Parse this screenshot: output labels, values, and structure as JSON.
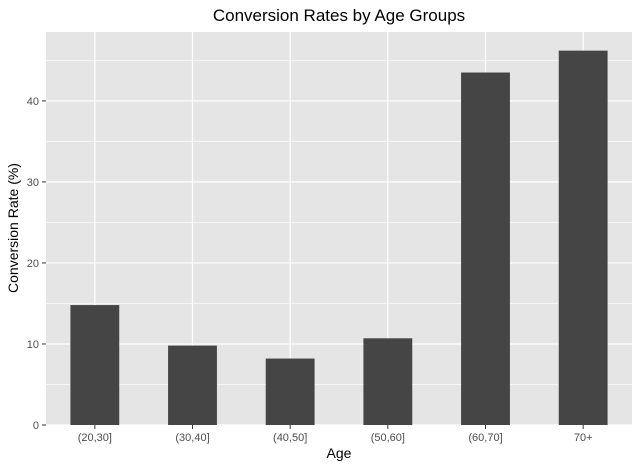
{
  "chart_data": {
    "type": "bar",
    "title": "Conversion Rates by Age Groups",
    "xlabel": "Age",
    "ylabel": "Conversion Rate (%)",
    "categories": [
      "(20,30]",
      "(30,40]",
      "(40,50]",
      "(50,60]",
      "(60,70]",
      "70+"
    ],
    "values": [
      14.8,
      9.8,
      8.2,
      10.7,
      43.5,
      46.2
    ],
    "ylim": [
      0,
      48.5
    ],
    "yticks": [
      0,
      10,
      20,
      30,
      40
    ],
    "grid": true,
    "legend": "none",
    "colors": {
      "bar": "#454545",
      "panel": "#e5e5e5",
      "grid": "#ffffff",
      "tick_text": "#4d4d4d",
      "tick_mark": "#333333"
    }
  }
}
